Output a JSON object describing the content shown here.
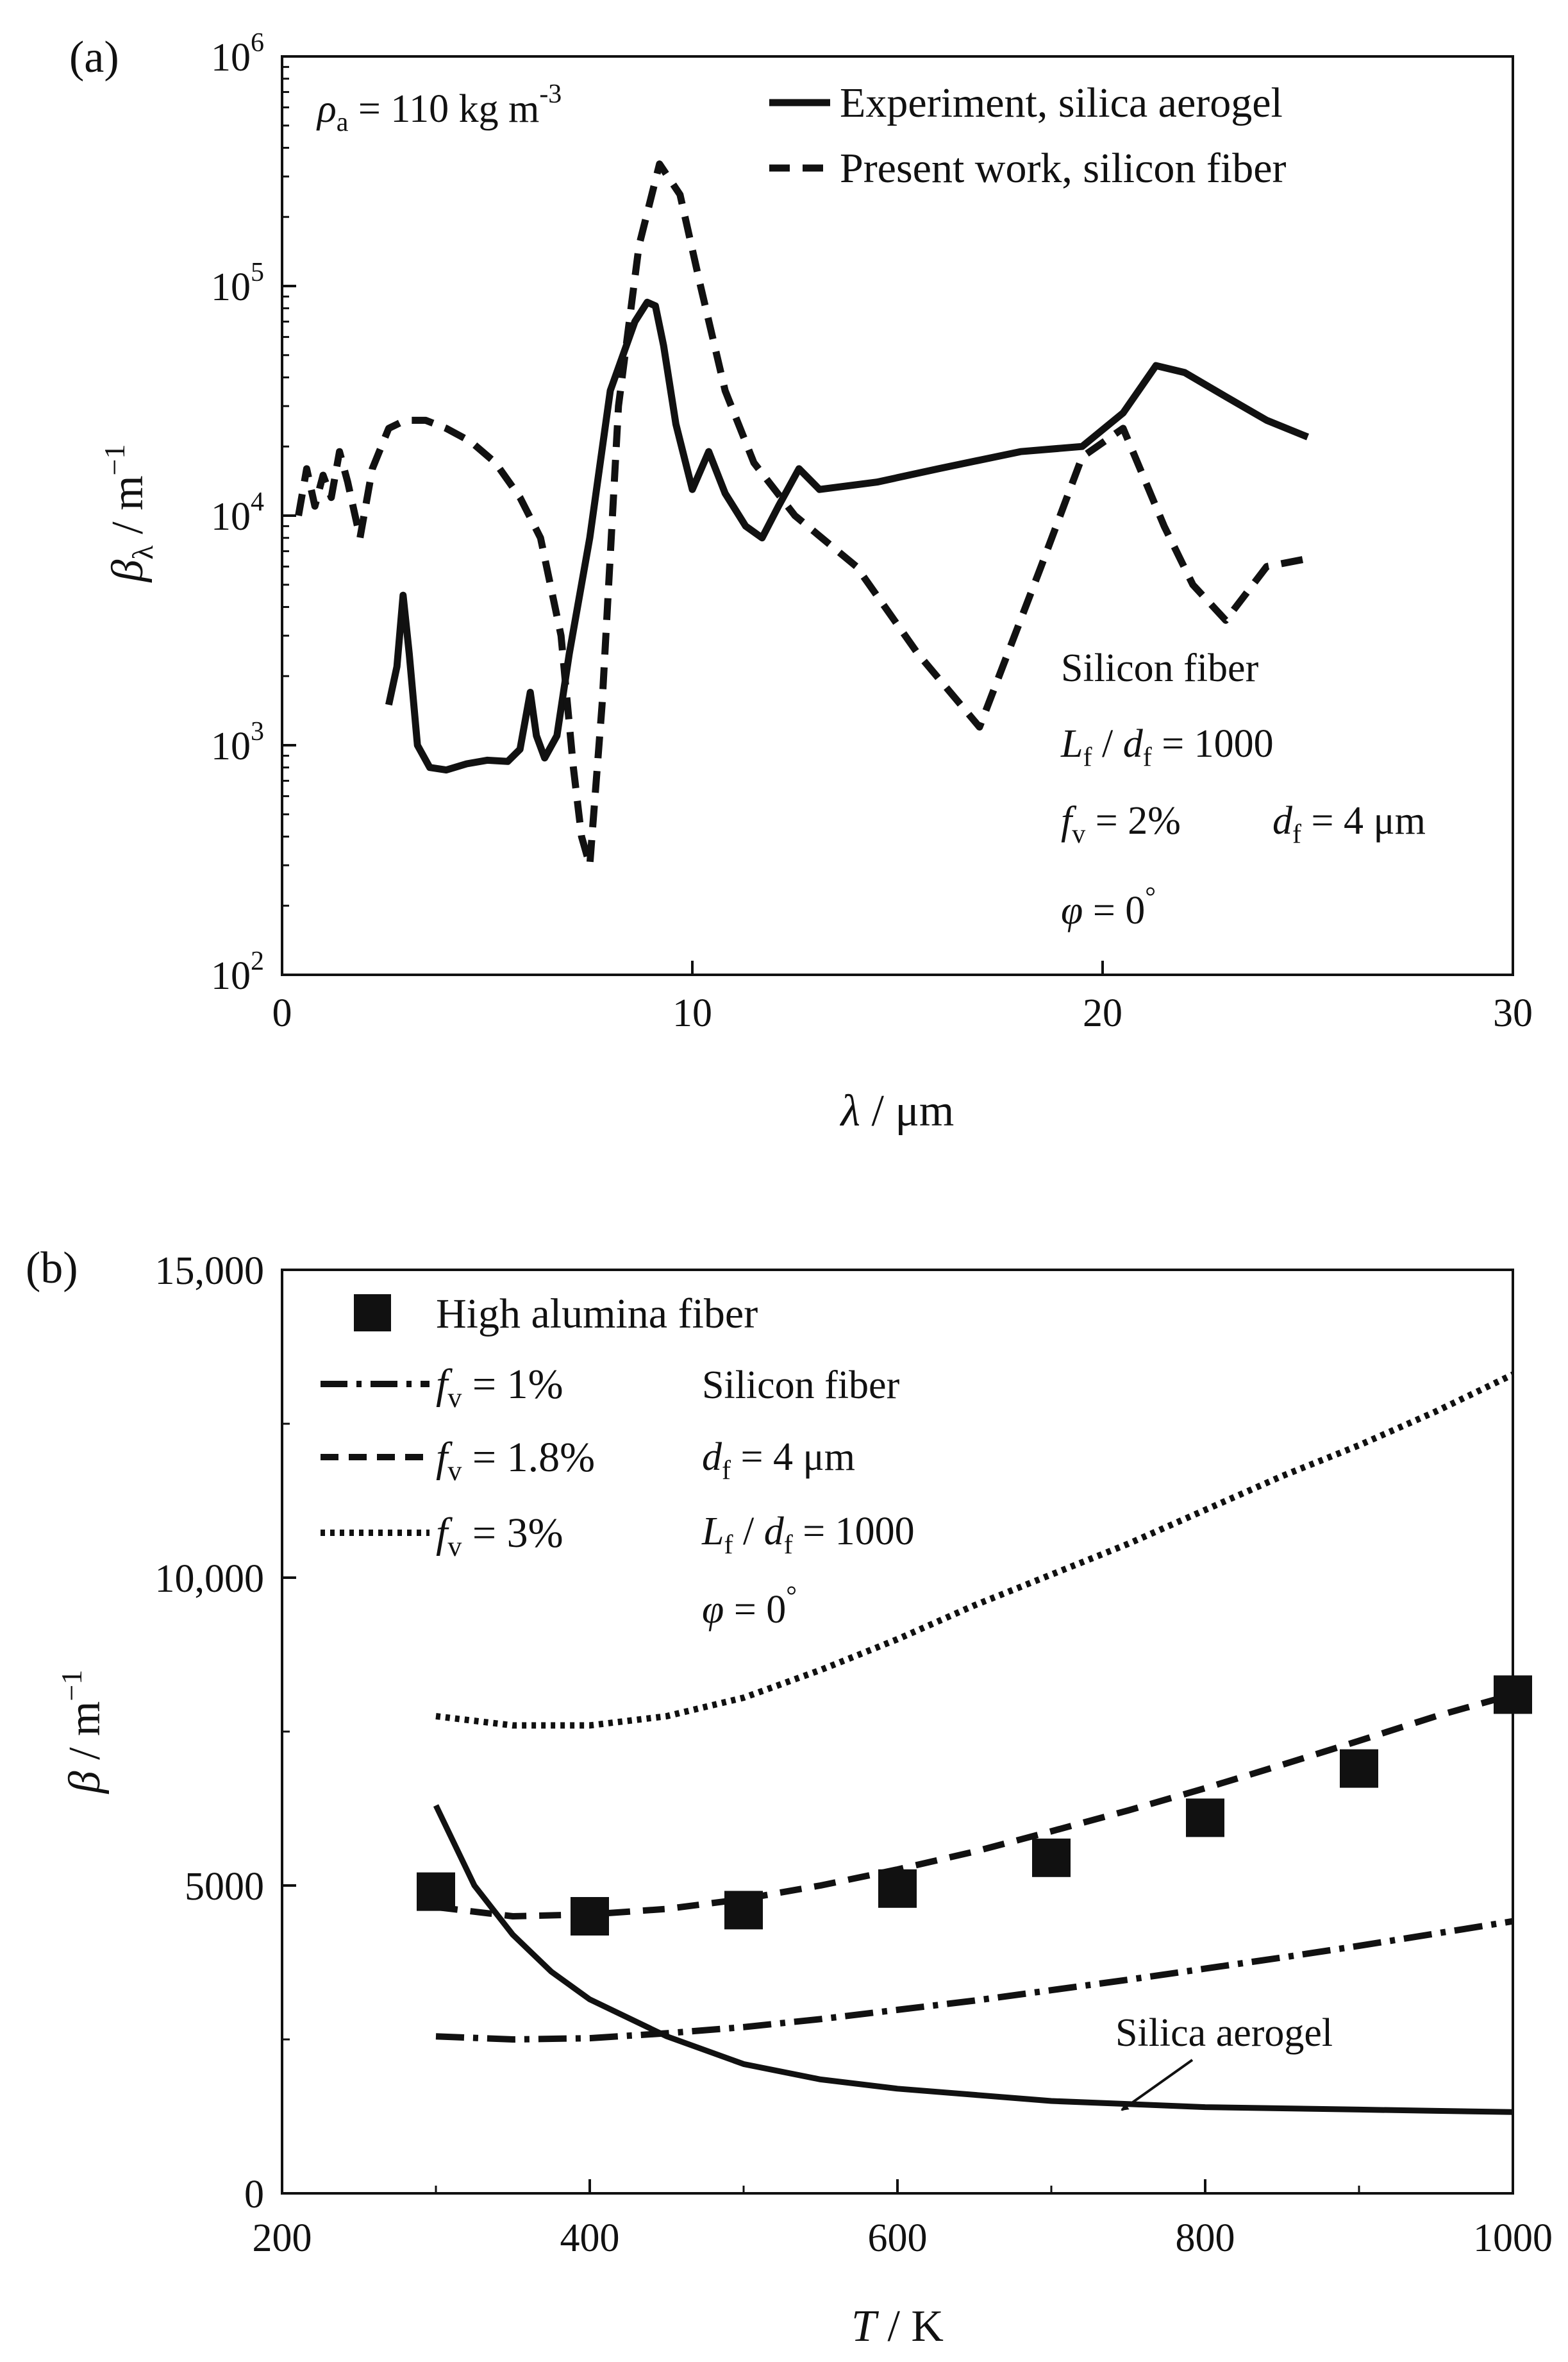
{
  "chart_data": [
    {
      "panel": "(a)",
      "type": "line",
      "yscale": "log",
      "xlim": [
        0,
        30
      ],
      "ylim_exp": [
        2,
        6
      ],
      "xticks": [
        0,
        10,
        20,
        30
      ],
      "xtick_labels": [
        "0",
        "10",
        "20",
        "30"
      ],
      "ytick_exponents": [
        2,
        3,
        4,
        5,
        6
      ],
      "ytick_base": "10",
      "ytick_sups": [
        "2",
        "3",
        "4",
        "5",
        "6"
      ],
      "xlabel": {
        "sym": "λ",
        "unit": " / μm"
      },
      "ylabel": {
        "sym": "β",
        "sub": "λ",
        "unit": " / m",
        "sup": "−1"
      },
      "density_label": {
        "sym": "ρ",
        "sub": "a",
        "text": " = 110 kg m",
        "sup": "-3"
      },
      "series": [
        {
          "name": "Experiment, silica aerogel",
          "style": "solid",
          "x": [
            2.6,
            2.8,
            2.95,
            3.1,
            3.3,
            3.6,
            4.0,
            4.5,
            5.0,
            5.5,
            5.8,
            6.05,
            6.2,
            6.4,
            6.7,
            7.0,
            7.5,
            8.0,
            8.6,
            8.9,
            9.1,
            9.3,
            9.6,
            10.0,
            10.4,
            10.8,
            11.3,
            11.7,
            12.1,
            12.6,
            13.1,
            14.5,
            16.0,
            18.0,
            19.5,
            20.5,
            21.3,
            22.0,
            23.0,
            24.0,
            25.0
          ],
          "y": [
            1500,
            2200,
            4500,
            2500,
            1000,
            800,
            780,
            830,
            860,
            850,
            960,
            1700,
            1100,
            880,
            1100,
            2500,
            8000,
            35000,
            70000,
            85000,
            82000,
            55000,
            25000,
            13000,
            19000,
            12500,
            9000,
            8000,
            11000,
            16000,
            13000,
            14000,
            16000,
            19000,
            20000,
            28000,
            45000,
            42000,
            33000,
            26000,
            22000
          ]
        },
        {
          "name": "Present work, silicon fiber",
          "style": "dashed",
          "x": [
            0.4,
            0.6,
            0.8,
            1.0,
            1.2,
            1.4,
            1.6,
            1.9,
            2.2,
            2.6,
            3.0,
            3.5,
            4.0,
            4.6,
            5.2,
            5.8,
            6.3,
            6.8,
            7.1,
            7.3,
            7.5,
            7.8,
            8.2,
            8.7,
            9.2,
            9.7,
            10.2,
            10.8,
            11.5,
            12.5,
            14.0,
            15.5,
            17.0,
            18.5,
            19.5,
            20.5,
            21.5,
            22.2,
            23.0,
            24.0,
            25.0
          ],
          "y": [
            10000,
            16000,
            11000,
            15000,
            12000,
            19000,
            14000,
            8000,
            16000,
            24000,
            26000,
            26000,
            24000,
            21000,
            17000,
            12000,
            8000,
            3000,
            800,
            400,
            300,
            1500,
            30000,
            150000,
            340000,
            250000,
            100000,
            35000,
            17000,
            10000,
            6000,
            2500,
            1200,
            6000,
            18000,
            24000,
            9000,
            5000,
            3500,
            6000,
            6500
          ]
        }
      ],
      "fiber_annotation": {
        "title": "Silicon fiber",
        "aspect": {
          "L": "L",
          "Lsub": "f",
          "d": "d",
          "dsub": "f",
          "val": " = 1000"
        },
        "fv": {
          "sym": "f",
          "sub": "v",
          "val": " = 2%"
        },
        "df": {
          "sym": "d",
          "sub": "f",
          "val": " = 4 μm"
        },
        "phi": {
          "sym": "φ",
          "val": " = 0",
          "sup": "°"
        }
      }
    },
    {
      "panel": "(b)",
      "type": "line",
      "yscale": "linear",
      "xlim": [
        200,
        1000
      ],
      "ylim": [
        0,
        15000
      ],
      "xticks": [
        200,
        400,
        600,
        800,
        1000
      ],
      "xtick_labels": [
        "200",
        "400",
        "600",
        "800",
        "1000"
      ],
      "yticks": [
        0,
        5000,
        10000,
        15000
      ],
      "ytick_labels": [
        "0",
        "5000",
        "10,000",
        "15,000"
      ],
      "xlabel": {
        "sym": "T",
        "unit": " / K"
      },
      "ylabel": {
        "sym": "β",
        "unit": " / m",
        "sup": "−1"
      },
      "scatter": {
        "name": "High alumina fiber",
        "x": [
          300,
          400,
          500,
          600,
          700,
          800,
          900,
          1000
        ],
        "y": [
          4900,
          4500,
          4600,
          4950,
          5450,
          6100,
          6900,
          8100
        ]
      },
      "series": [
        {
          "name": "f_v = 1%",
          "sym": "f",
          "sub": "v",
          "val": " = 1%",
          "style": "dashdot",
          "x": [
            300,
            350,
            400,
            450,
            500,
            550,
            600,
            650,
            700,
            750,
            800,
            850,
            900,
            950,
            1000
          ],
          "y": [
            2550,
            2500,
            2520,
            2600,
            2700,
            2830,
            2980,
            3130,
            3300,
            3470,
            3650,
            3830,
            4020,
            4220,
            4420
          ]
        },
        {
          "name": "f_v = 1.8%",
          "sym": "f",
          "sub": "v",
          "val": " = 1.8%",
          "style": "dashed",
          "x": [
            300,
            350,
            400,
            450,
            500,
            550,
            600,
            650,
            700,
            750,
            800,
            850,
            900,
            950,
            1000
          ],
          "y": [
            4650,
            4500,
            4530,
            4620,
            4780,
            5000,
            5260,
            5550,
            5880,
            6220,
            6580,
            6960,
            7350,
            7750,
            8100
          ]
        },
        {
          "name": "f_v = 3%",
          "sym": "f",
          "sub": "v",
          "val": " = 3%",
          "style": "dotted",
          "x": [
            300,
            350,
            400,
            450,
            500,
            550,
            600,
            650,
            700,
            750,
            800,
            850,
            900,
            950,
            1000
          ],
          "y": [
            7750,
            7600,
            7600,
            7750,
            8050,
            8500,
            9000,
            9550,
            10050,
            10550,
            11100,
            11650,
            12150,
            12700,
            13300
          ]
        },
        {
          "name": "Silica aerogel",
          "style": "solid",
          "x": [
            300,
            325,
            350,
            375,
            400,
            450,
            500,
            550,
            600,
            650,
            700,
            750,
            800,
            850,
            900,
            950,
            1000
          ],
          "y": [
            6300,
            5000,
            4200,
            3600,
            3150,
            2550,
            2100,
            1850,
            1700,
            1600,
            1500,
            1450,
            1400,
            1380,
            1360,
            1340,
            1320
          ]
        }
      ],
      "fiber_annotation": {
        "title": "Silicon fiber",
        "df": {
          "sym": "d",
          "sub": "f",
          "val": " = 4 μm"
        },
        "aspect": {
          "L": "L",
          "Lsub": "f",
          "d": "d",
          "dsub": "f",
          "val": " = 1000"
        },
        "phi": {
          "sym": "φ",
          "val": " = 0",
          "sup": "°"
        }
      },
      "curve_label": "Silica aerogel"
    }
  ]
}
